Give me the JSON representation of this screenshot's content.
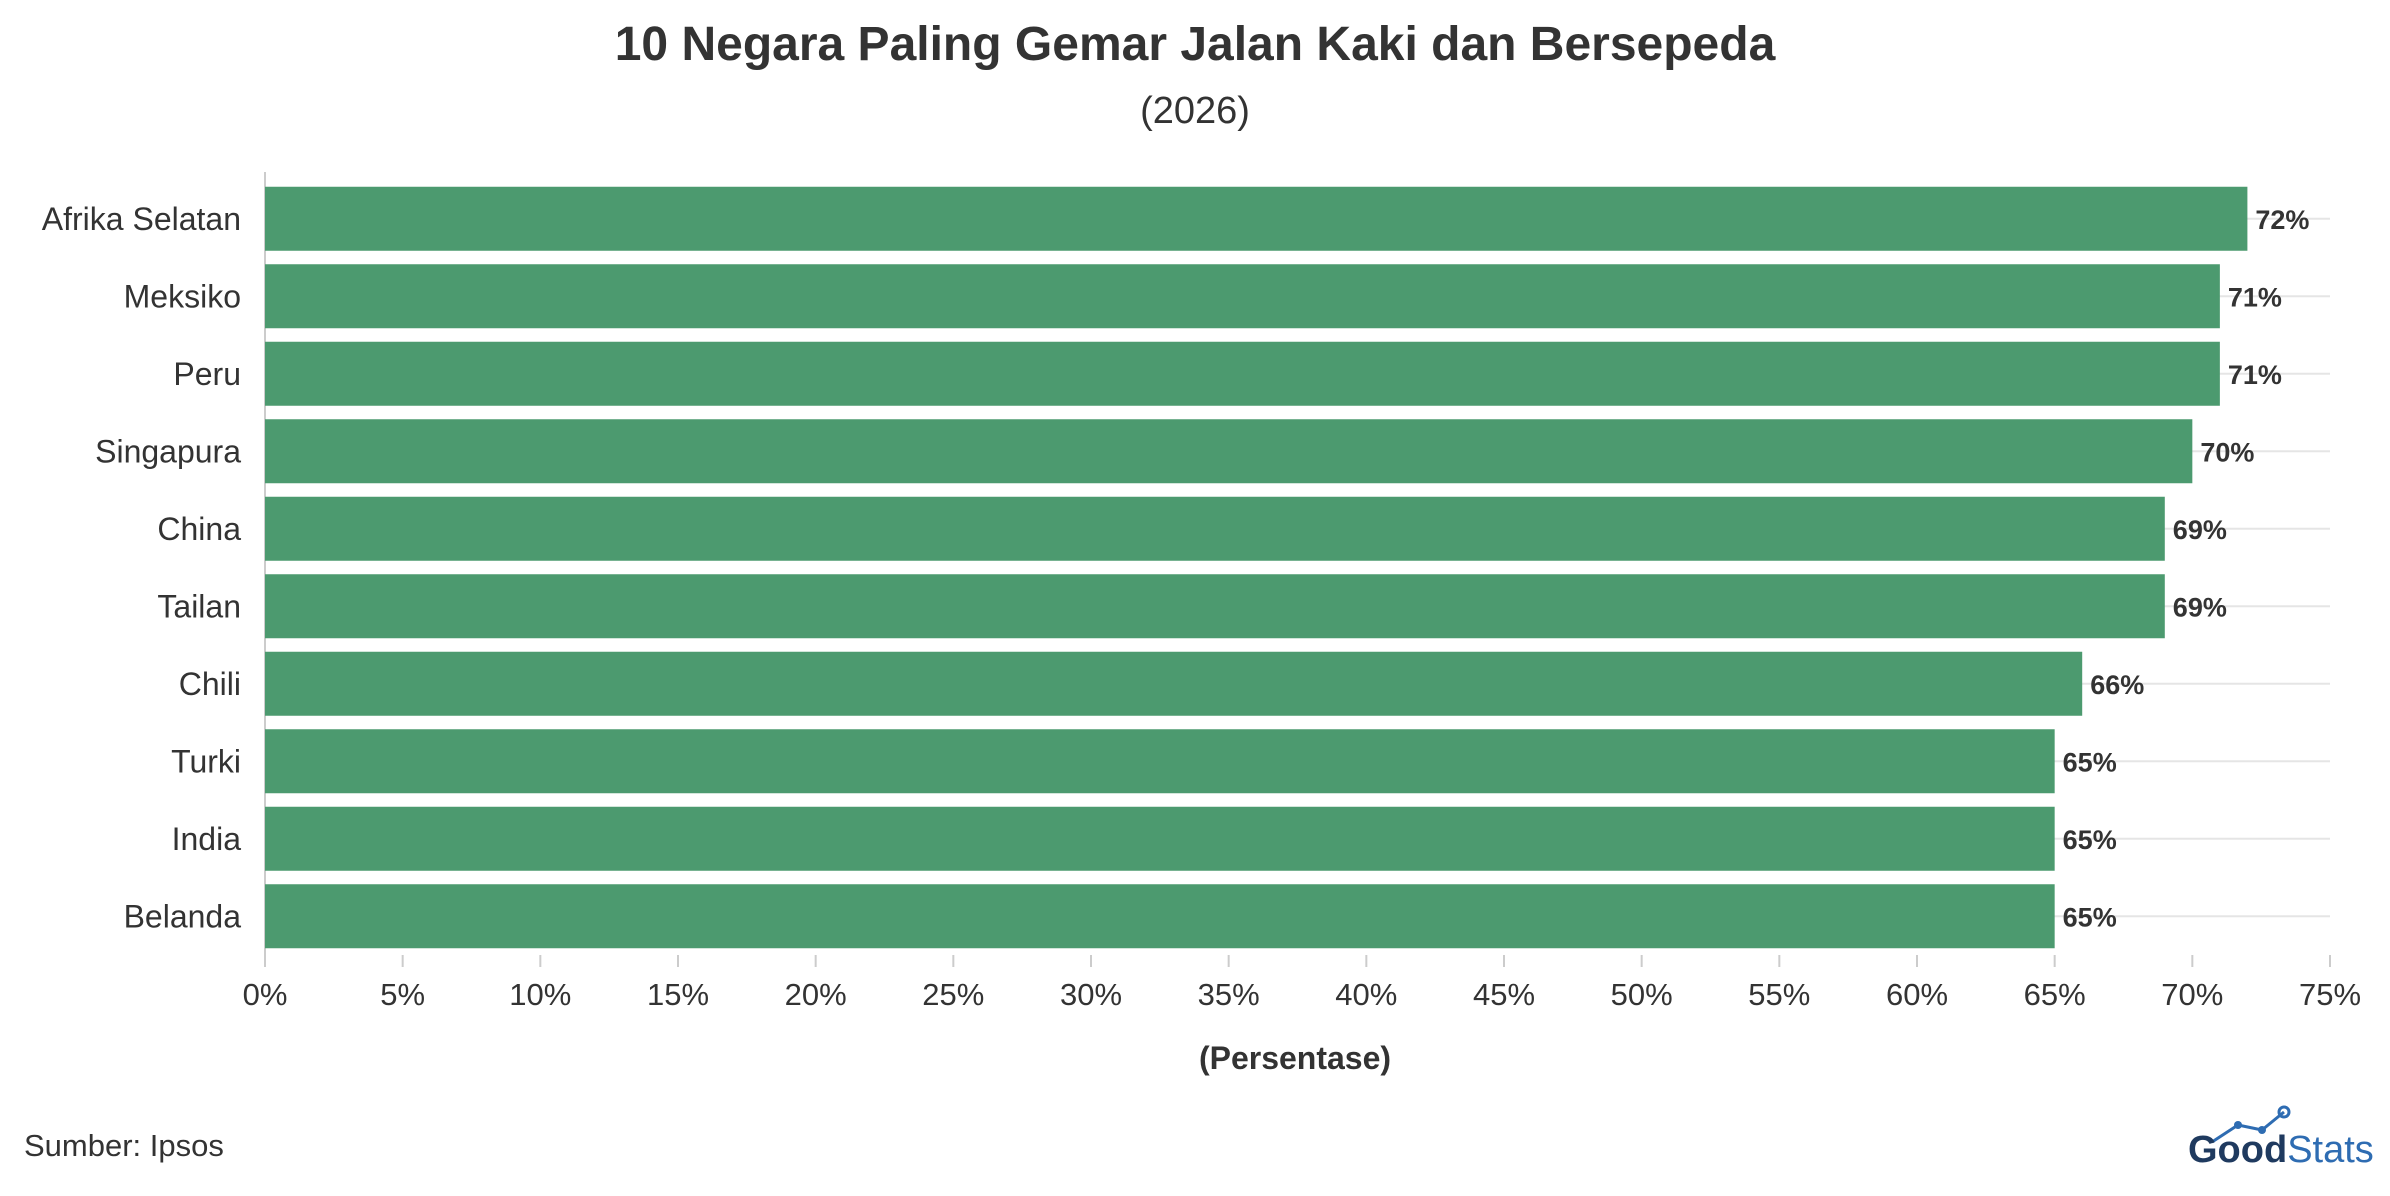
{
  "colors": {
    "bar": "#4c9a6f",
    "grid": "#e5e5e5",
    "text": "#333333",
    "logo_dark": "#1f3a5f",
    "logo_accent": "#2e6cb2"
  },
  "chart_data": {
    "type": "bar",
    "orientation": "horizontal",
    "title": "10 Negara Paling Gemar Jalan Kaki dan Bersepeda",
    "subtitle": "(2026)",
    "xlabel": "(Persentase)",
    "ylabel": "",
    "categories": [
      "Afrika Selatan",
      "Meksiko",
      "Peru",
      "Singapura",
      "China",
      "Tailan",
      "Chili",
      "Turki",
      "India",
      "Belanda"
    ],
    "values": [
      72,
      71,
      71,
      70,
      69,
      69,
      66,
      65,
      65,
      65
    ],
    "data_labels": [
      "72%",
      "71%",
      "71%",
      "70%",
      "69%",
      "69%",
      "66%",
      "65%",
      "65%",
      "65%"
    ],
    "xlim": [
      0,
      75
    ],
    "x_ticks": [
      0,
      5,
      10,
      15,
      20,
      25,
      30,
      35,
      40,
      45,
      50,
      55,
      60,
      65,
      70,
      75
    ],
    "x_tick_labels": [
      "0%",
      "5%",
      "10%",
      "15%",
      "20%",
      "25%",
      "30%",
      "35%",
      "40%",
      "45%",
      "50%",
      "55%",
      "60%",
      "65%",
      "70%",
      "75%"
    ],
    "grid": true
  },
  "source": "Sumber: Ipsos",
  "logo": {
    "part1": "Good",
    "part2": "Stats"
  }
}
